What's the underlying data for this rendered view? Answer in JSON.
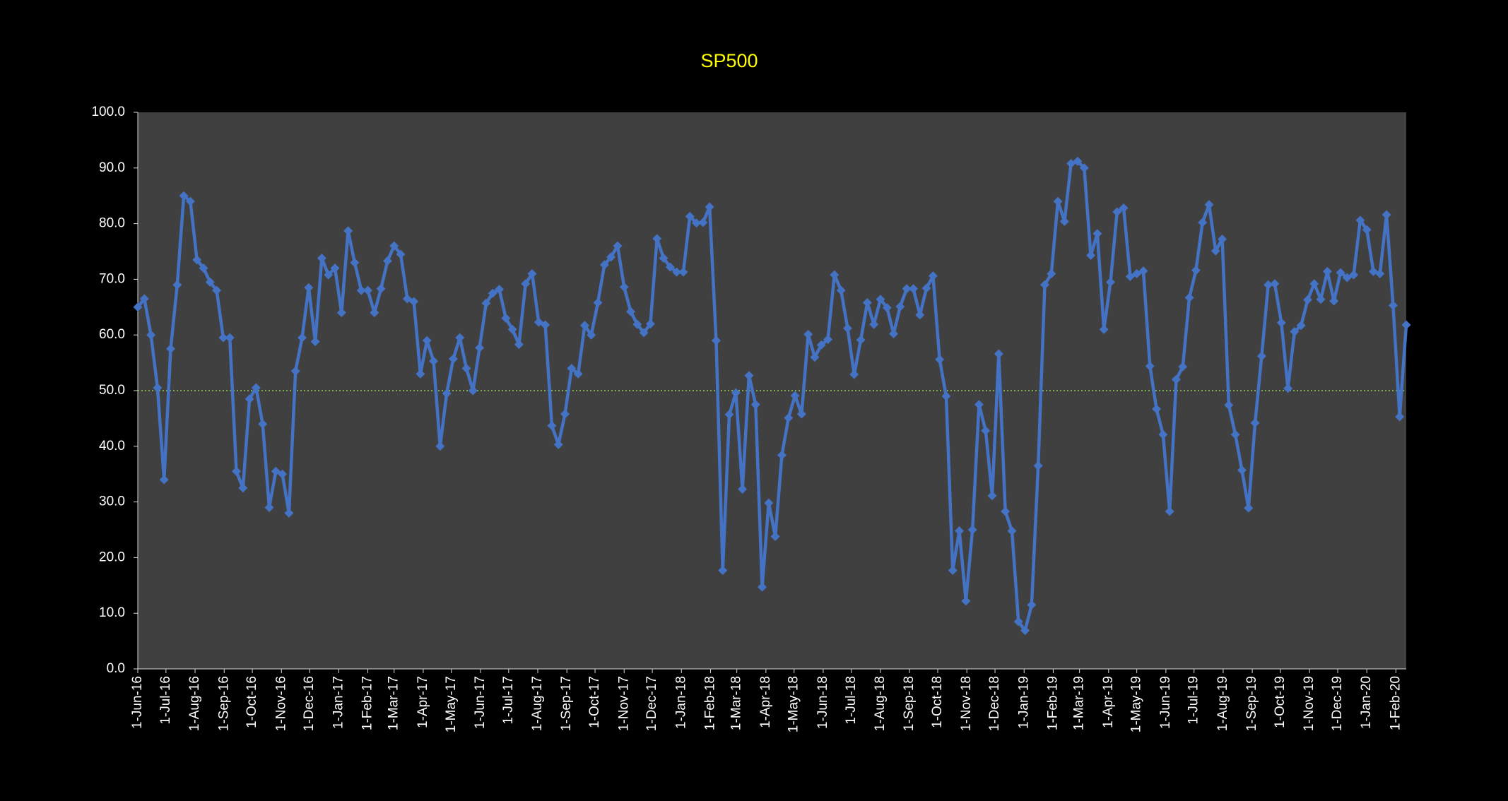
{
  "chart_data": {
    "type": "line",
    "title": "SP500",
    "x": [
      "2016-06-01",
      "2016-06-08",
      "2016-06-15",
      "2016-06-22",
      "2016-06-29",
      "2016-07-06",
      "2016-07-13",
      "2016-07-20",
      "2016-07-27",
      "2016-08-03",
      "2016-08-10",
      "2016-08-17",
      "2016-08-24",
      "2016-08-31",
      "2016-09-07",
      "2016-09-14",
      "2016-09-21",
      "2016-09-28",
      "2016-10-05",
      "2016-10-12",
      "2016-10-19",
      "2016-10-26",
      "2016-11-02",
      "2016-11-09",
      "2016-11-16",
      "2016-11-23",
      "2016-11-30",
      "2016-12-07",
      "2016-12-14",
      "2016-12-21",
      "2016-12-28",
      "2017-01-04",
      "2017-01-11",
      "2017-01-18",
      "2017-01-25",
      "2017-02-01",
      "2017-02-08",
      "2017-02-15",
      "2017-02-22",
      "2017-03-01",
      "2017-03-08",
      "2017-03-15",
      "2017-03-22",
      "2017-03-29",
      "2017-04-05",
      "2017-04-12",
      "2017-04-19",
      "2017-04-26",
      "2017-05-03",
      "2017-05-10",
      "2017-05-17",
      "2017-05-24",
      "2017-05-31",
      "2017-06-07",
      "2017-06-14",
      "2017-06-21",
      "2017-06-28",
      "2017-07-05",
      "2017-07-12",
      "2017-07-19",
      "2017-07-26",
      "2017-08-02",
      "2017-08-09",
      "2017-08-16",
      "2017-08-23",
      "2017-08-30",
      "2017-09-06",
      "2017-09-13",
      "2017-09-20",
      "2017-09-27",
      "2017-10-04",
      "2017-10-11",
      "2017-10-18",
      "2017-10-25",
      "2017-11-01",
      "2017-11-08",
      "2017-11-15",
      "2017-11-22",
      "2017-11-29",
      "2017-12-06",
      "2017-12-13",
      "2017-12-20",
      "2017-12-27",
      "2018-01-03",
      "2018-01-10",
      "2018-01-17",
      "2018-01-24",
      "2018-01-31",
      "2018-02-07",
      "2018-02-14",
      "2018-02-21",
      "2018-02-28",
      "2018-03-07",
      "2018-03-14",
      "2018-03-21",
      "2018-03-28",
      "2018-04-04",
      "2018-04-11",
      "2018-04-18",
      "2018-04-25",
      "2018-05-02",
      "2018-05-09",
      "2018-05-16",
      "2018-05-23",
      "2018-05-30",
      "2018-06-06",
      "2018-06-13",
      "2018-06-20",
      "2018-06-27",
      "2018-07-04",
      "2018-07-11",
      "2018-07-18",
      "2018-07-25",
      "2018-08-01",
      "2018-08-08",
      "2018-08-15",
      "2018-08-22",
      "2018-08-29",
      "2018-09-05",
      "2018-09-12",
      "2018-09-19",
      "2018-09-26",
      "2018-10-03",
      "2018-10-10",
      "2018-10-17",
      "2018-10-24",
      "2018-10-31",
      "2018-11-07",
      "2018-11-14",
      "2018-11-21",
      "2018-11-28",
      "2018-12-05",
      "2018-12-12",
      "2018-12-19",
      "2018-12-26",
      "2019-01-02",
      "2019-01-09",
      "2019-01-16",
      "2019-01-23",
      "2019-01-30",
      "2019-02-06",
      "2019-02-13",
      "2019-02-20",
      "2019-02-27",
      "2019-03-06",
      "2019-03-13",
      "2019-03-20",
      "2019-03-27",
      "2019-04-03",
      "2019-04-10",
      "2019-04-17",
      "2019-04-24",
      "2019-05-01",
      "2019-05-08",
      "2019-05-15",
      "2019-05-22",
      "2019-05-29",
      "2019-06-05",
      "2019-06-12",
      "2019-06-19",
      "2019-06-26",
      "2019-07-03",
      "2019-07-10",
      "2019-07-17",
      "2019-07-24",
      "2019-07-31",
      "2019-08-07",
      "2019-08-14",
      "2019-08-21",
      "2019-08-28",
      "2019-09-04",
      "2019-09-11",
      "2019-09-18",
      "2019-09-25",
      "2019-10-02",
      "2019-10-09",
      "2019-10-16",
      "2019-10-23",
      "2019-10-30",
      "2019-11-06",
      "2019-11-13",
      "2019-11-20",
      "2019-11-27",
      "2019-12-04",
      "2019-12-11",
      "2019-12-18",
      "2019-12-25",
      "2020-01-01",
      "2020-01-08",
      "2020-01-15",
      "2020-01-22",
      "2020-01-29",
      "2020-02-05",
      "2020-02-12"
    ],
    "series": [
      {
        "color": "#4472c4",
        "values": [
          65,
          66.5,
          60,
          50.5,
          34,
          57.5,
          69,
          85,
          84,
          73.5,
          72,
          69.5,
          68,
          59.5,
          59.5,
          35.5,
          32.5,
          48.5,
          50.5,
          44,
          29,
          35.5,
          35,
          28,
          53.5,
          59.5,
          68.5,
          58.8,
          73.8,
          70.8,
          72,
          64,
          78.7,
          73,
          68,
          68,
          64,
          68.3,
          73.3,
          76,
          74.5,
          66.5,
          66,
          53,
          59,
          55.3,
          40,
          49.5,
          55.7,
          59.5,
          54,
          50,
          57.7,
          65.7,
          67.5,
          68.2,
          63,
          61,
          58.3,
          69.2,
          71,
          62.3,
          61.8,
          43.7,
          40.3,
          45.8,
          54,
          53,
          61.7,
          60,
          65.8,
          72.6,
          74,
          76,
          68.6,
          64.2,
          61.9,
          60.4,
          62,
          77.3,
          73.8,
          72.2,
          71.3,
          71.3,
          81.3,
          80.1,
          80.2,
          83,
          59,
          17.7,
          45.7,
          49.6,
          32.3,
          52.7,
          47.5,
          14.7,
          29.8,
          23.8,
          38.4,
          45.1,
          49.1,
          45.8,
          60.1,
          56,
          58.2,
          59.2,
          70.8,
          68,
          61.2,
          52.9,
          59.1,
          65.8,
          61.9,
          66.4,
          64.9,
          60.2,
          65.1,
          68.3,
          68.3,
          63.6,
          68.4,
          70.6,
          55.6,
          49,
          17.7,
          24.8,
          12.2,
          25,
          47.5,
          42.8,
          31.1,
          56.6,
          28.3,
          24.8,
          8.5,
          6.9,
          11.5,
          36.5,
          69,
          71,
          84,
          80.4,
          90.8,
          91.2,
          90,
          74.3,
          78.2,
          61,
          69.5,
          82.1,
          82.8,
          70.5,
          71,
          71.5,
          54.4,
          46.7,
          42.1,
          28.3,
          52,
          54.3,
          66.7,
          71.6,
          80.2,
          83.4,
          75.1,
          77.2,
          47.4,
          42.1,
          35.7,
          28.9,
          44.2,
          56.2,
          69,
          69.2,
          62.2,
          50.4,
          60.6,
          61.7,
          66.3,
          69.2,
          66.4,
          71.4,
          66.1,
          71.2,
          70.3,
          70.8,
          80.6,
          78.9,
          71.4,
          71,
          81.6,
          65.3,
          45.3,
          61.8
        ]
      }
    ],
    "xlim": [
      "2016-06-01",
      "2020-02-12"
    ],
    "xticks": [
      {
        "value": "2016-06-01",
        "label": "1-Jun-16"
      },
      {
        "value": "2016-07-01",
        "label": "1-Jul-16"
      },
      {
        "value": "2016-08-01",
        "label": "1-Aug-16"
      },
      {
        "value": "2016-09-01",
        "label": "1-Sep-16"
      },
      {
        "value": "2016-10-01",
        "label": "1-Oct-16"
      },
      {
        "value": "2016-11-01",
        "label": "1-Nov-16"
      },
      {
        "value": "2016-12-01",
        "label": "1-Dec-16"
      },
      {
        "value": "2017-01-01",
        "label": "1-Jan-17"
      },
      {
        "value": "2017-02-01",
        "label": "1-Feb-17"
      },
      {
        "value": "2017-03-01",
        "label": "1-Mar-17"
      },
      {
        "value": "2017-04-01",
        "label": "1-Apr-17"
      },
      {
        "value": "2017-05-01",
        "label": "1-May-17"
      },
      {
        "value": "2017-06-01",
        "label": "1-Jun-17"
      },
      {
        "value": "2017-07-01",
        "label": "1-Jul-17"
      },
      {
        "value": "2017-08-01",
        "label": "1-Aug-17"
      },
      {
        "value": "2017-09-01",
        "label": "1-Sep-17"
      },
      {
        "value": "2017-10-01",
        "label": "1-Oct-17"
      },
      {
        "value": "2017-11-01",
        "label": "1-Nov-17"
      },
      {
        "value": "2017-12-01",
        "label": "1-Dec-17"
      },
      {
        "value": "2018-01-01",
        "label": "1-Jan-18"
      },
      {
        "value": "2018-02-01",
        "label": "1-Feb-18"
      },
      {
        "value": "2018-03-01",
        "label": "1-Mar-18"
      },
      {
        "value": "2018-04-01",
        "label": "1-Apr-18"
      },
      {
        "value": "2018-05-01",
        "label": "1-May-18"
      },
      {
        "value": "2018-06-01",
        "label": "1-Jun-18"
      },
      {
        "value": "2018-07-01",
        "label": "1-Jul-18"
      },
      {
        "value": "2018-08-01",
        "label": "1-Aug-18"
      },
      {
        "value": "2018-09-01",
        "label": "1-Sep-18"
      },
      {
        "value": "2018-10-01",
        "label": "1-Oct-18"
      },
      {
        "value": "2018-11-01",
        "label": "1-Nov-18"
      },
      {
        "value": "2018-12-01",
        "label": "1-Dec-18"
      },
      {
        "value": "2019-01-01",
        "label": "1-Jan-19"
      },
      {
        "value": "2019-02-01",
        "label": "1-Feb-19"
      },
      {
        "value": "2019-03-01",
        "label": "1-Mar-19"
      },
      {
        "value": "2019-04-01",
        "label": "1-Apr-19"
      },
      {
        "value": "2019-05-01",
        "label": "1-May-19"
      },
      {
        "value": "2019-06-01",
        "label": "1-Jun-19"
      },
      {
        "value": "2019-07-01",
        "label": "1-Jul-19"
      },
      {
        "value": "2019-08-01",
        "label": "1-Aug-19"
      },
      {
        "value": "2019-09-01",
        "label": "1-Sep-19"
      },
      {
        "value": "2019-10-01",
        "label": "1-Oct-19"
      },
      {
        "value": "2019-11-01",
        "label": "1-Nov-19"
      },
      {
        "value": "2019-12-01",
        "label": "1-Dec-19"
      },
      {
        "value": "2020-01-01",
        "label": "1-Jan-20"
      },
      {
        "value": "2020-02-01",
        "label": "1-Feb-20"
      }
    ],
    "ylim": [
      0,
      100
    ],
    "yticks": [
      {
        "value": 0,
        "label": "0.0"
      },
      {
        "value": 10,
        "label": "10.0"
      },
      {
        "value": 20,
        "label": "20.0"
      },
      {
        "value": 30,
        "label": "30.0"
      },
      {
        "value": 40,
        "label": "40.0"
      },
      {
        "value": 50,
        "label": "50.0"
      },
      {
        "value": 60,
        "label": "60.0"
      },
      {
        "value": 70,
        "label": "70.0"
      },
      {
        "value": 80,
        "label": "80.0"
      },
      {
        "value": 90,
        "label": "90.0"
      },
      {
        "value": 100,
        "label": "100.0"
      }
    ],
    "reference_line": {
      "value": 50,
      "color": "#92d050"
    },
    "grid": false,
    "marker": "diamond"
  }
}
